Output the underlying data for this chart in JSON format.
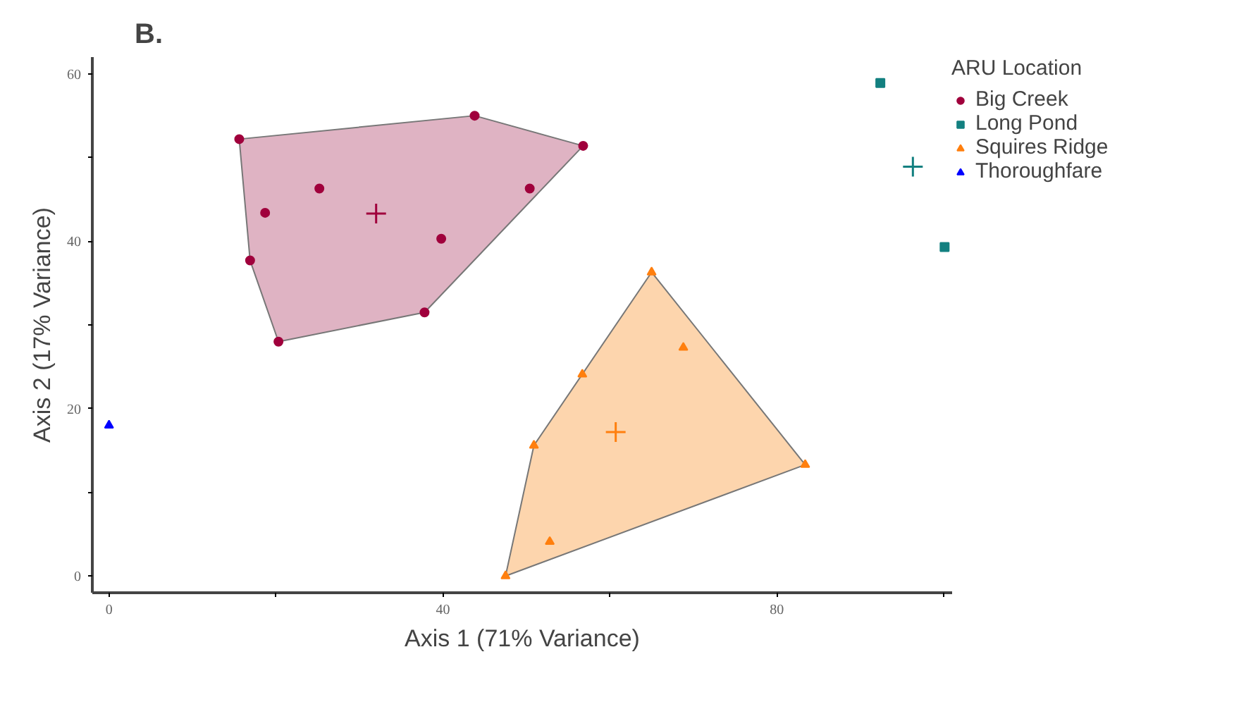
{
  "chart_data": {
    "type": "scatter",
    "title": "B.",
    "xlabel": "Axis 1 (71% Variance)",
    "ylabel": "Axis 2 (17% Variance)",
    "legend_title": "ARU Location",
    "legend": "top right",
    "grid": false,
    "xlim": [
      -2,
      101
    ],
    "ylim": [
      -2,
      62
    ],
    "xticks": [
      0,
      {
        "value": 20,
        "label": null
      },
      40,
      {
        "value": 60,
        "label": null
      },
      80,
      {
        "value": 100,
        "label": null
      }
    ],
    "yticks": [
      0,
      {
        "value": 10,
        "label": null
      },
      20,
      {
        "value": 30,
        "label": null
      },
      40,
      {
        "value": 50,
        "label": null
      },
      60
    ],
    "series": [
      {
        "type": "area",
        "color": "#dfb3c3",
        "x": [
          15.6,
          43.8,
          56.8,
          37.8,
          20.3,
          16.9
        ],
        "values": [
          52.2,
          55.0,
          51.4,
          31.5,
          28.0,
          37.7
        ]
      },
      {
        "type": "area",
        "color": "#fdd5ad",
        "x": [
          47.5,
          50.9,
          65.0,
          83.4
        ],
        "values": [
          0,
          15.6,
          36.3,
          13.3
        ]
      },
      {
        "name": "Big Creek",
        "color": "#a0003c",
        "marker": "circle",
        "x": [
          15.6,
          43.8,
          56.8,
          50.4,
          25.2,
          18.7,
          39.8,
          16.9,
          37.8,
          20.3
        ],
        "values": [
          52.2,
          55.0,
          51.4,
          46.3,
          46.3,
          43.4,
          40.3,
          37.7,
          31.5,
          28.0
        ]
      },
      {
        "name": "Long Pond",
        "color": "#138080",
        "marker": "square",
        "x": [
          92.4,
          100.1
        ],
        "values": [
          58.9,
          39.3
        ]
      },
      {
        "name": "Squires Ridge",
        "color": "#ff7f0e",
        "marker": "triangle",
        "x": [
          65.0,
          68.8,
          56.7,
          50.9,
          83.4,
          52.8,
          47.5
        ],
        "values": [
          36.3,
          27.3,
          24.1,
          15.6,
          13.3,
          4.1,
          0
        ]
      },
      {
        "name": "Thoroughfare",
        "color": "#0000ff",
        "marker": "triangle",
        "x": [
          0
        ],
        "values": [
          18.0
        ]
      },
      {
        "color": "#a0003c",
        "marker": "cross",
        "x": [
          32.0
        ],
        "values": [
          43.3
        ]
      },
      {
        "color": "#ff7f0e",
        "marker": "cross",
        "x": [
          60.7
        ],
        "values": [
          17.2
        ]
      },
      {
        "color": "#138080",
        "marker": "cross",
        "x": [
          96.3
        ],
        "values": [
          48.9
        ]
      }
    ]
  }
}
